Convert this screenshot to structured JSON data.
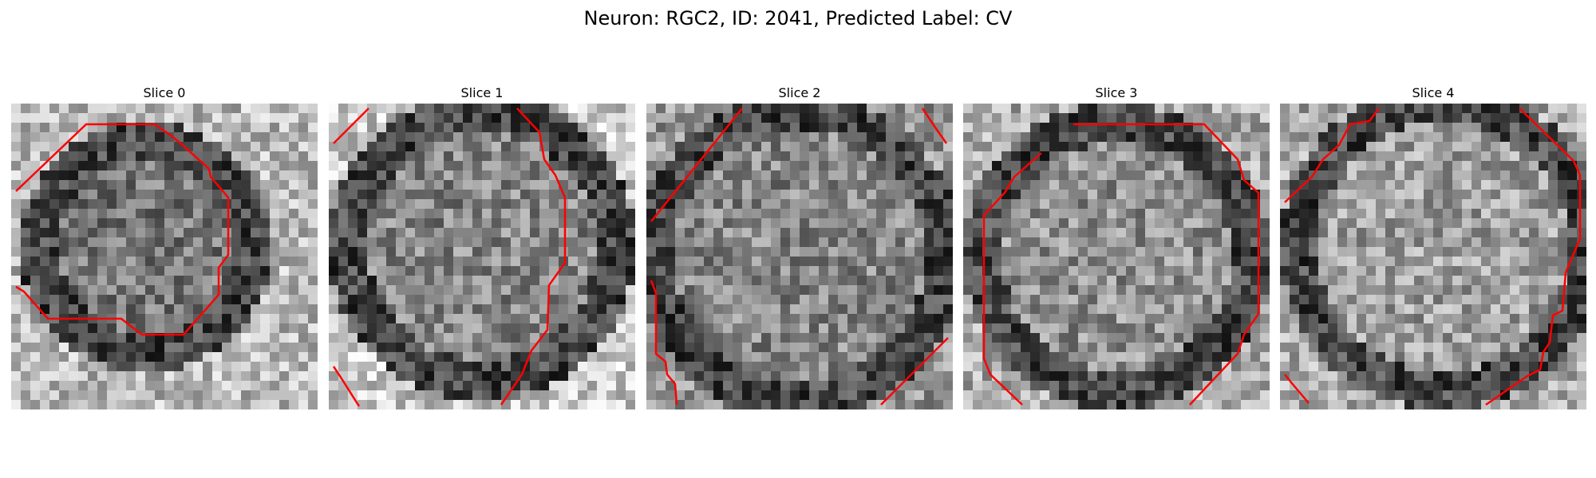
{
  "title": "Neuron: RGC2, ID: 2041, Predicted Label: CV",
  "panels": [
    {
      "title": "Slice 0"
    },
    {
      "title": "Slice 1"
    },
    {
      "title": "Slice 2"
    },
    {
      "title": "Slice 3"
    },
    {
      "title": "Slice 4"
    }
  ],
  "colors": {
    "contour": "#ff0000",
    "background": "#ffffff"
  }
}
